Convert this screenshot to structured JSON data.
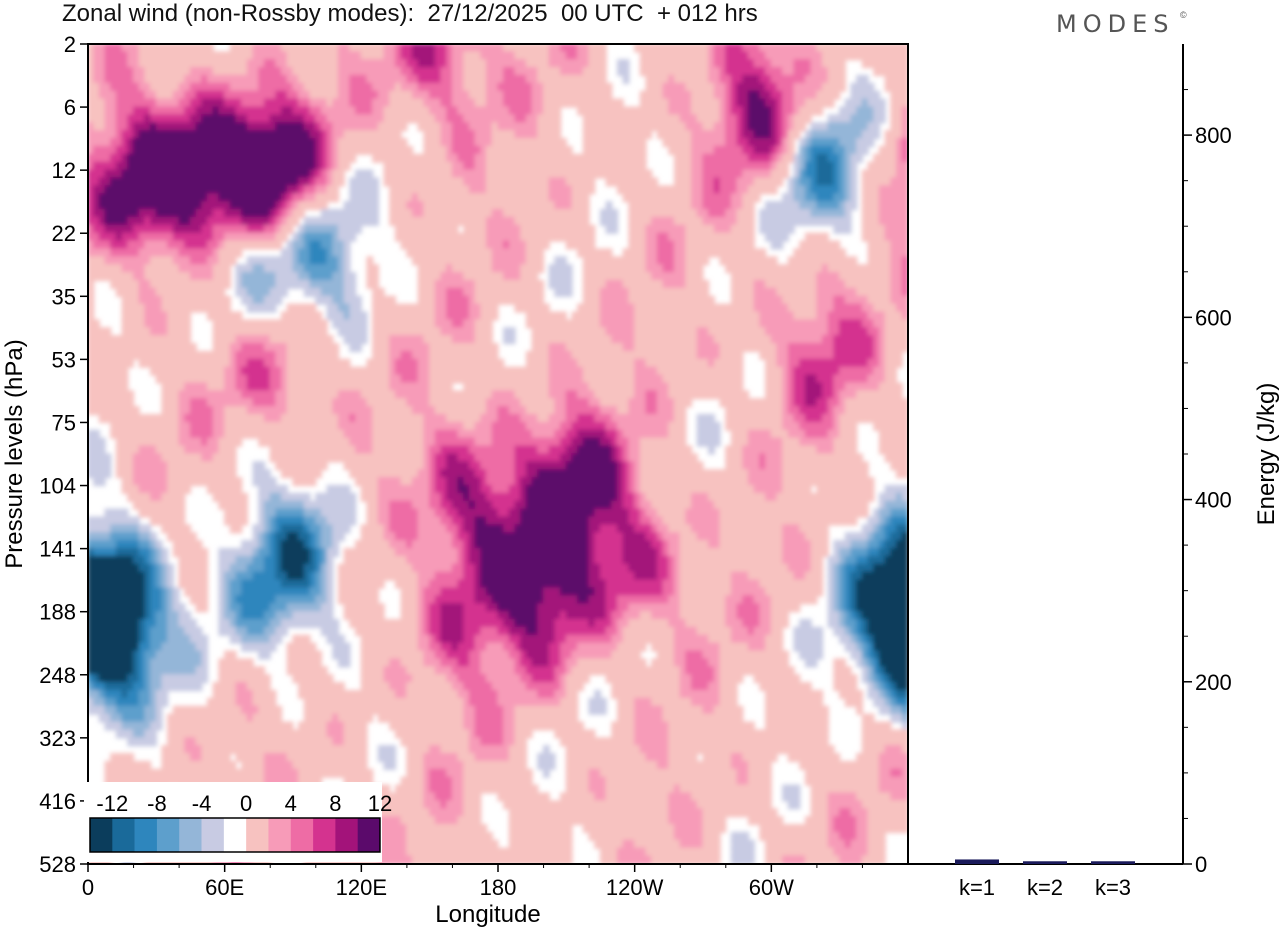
{
  "header": {
    "title": "Zonal wind (non-Rossby modes):  27/12/2025  00 UTC  + 012 hrs",
    "brand": "MODES",
    "brand_mark": "©"
  },
  "chart_data": [
    {
      "type": "heatmap",
      "title": "Zonal wind (non-Rossby modes):  27/12/2025  00 UTC  + 012 hrs",
      "xlabel": "Longitude",
      "ylabel": "Pressure levels (hPa)",
      "x_ticks": [
        "0",
        "60E",
        "120E",
        "180",
        "120W",
        "60W"
      ],
      "x_tick_degrees": [
        0,
        60,
        120,
        180,
        240,
        300
      ],
      "xlim": [
        0,
        360
      ],
      "y_ticks": [
        "2",
        "6",
        "12",
        "22",
        "35",
        "53",
        "75",
        "104",
        "141",
        "188",
        "248",
        "323",
        "416",
        "528"
      ],
      "colorbar": {
        "labels": [
          "-12",
          "-8",
          "-4",
          "0",
          "4",
          "8",
          "12"
        ],
        "levels": [
          -14,
          -12,
          -10,
          -8,
          -6,
          -4,
          -2,
          2,
          4,
          6,
          8,
          10,
          12,
          14
        ],
        "colors": [
          "#0b3d5c",
          "#1a6a9a",
          "#2e86bd",
          "#5d9fcc",
          "#94b6d8",
          "#c8cbe3",
          "#ffffff",
          "#f7c2c0",
          "#f79bb8",
          "#ee6ca5",
          "#d4338f",
          "#a3137a",
          "#5b0a6b"
        ]
      },
      "features": [
        {
          "lon": 10,
          "level": 9.4,
          "value": -12
        },
        {
          "lon": 15,
          "level": 8.6,
          "value": -8
        },
        {
          "lon": 95,
          "level": 8.1,
          "value": -10
        },
        {
          "lon": 80,
          "level": 8.9,
          "value": -6
        },
        {
          "lon": 360,
          "level": 9.3,
          "value": -10
        },
        {
          "lon": 348,
          "level": 8.5,
          "value": -6
        },
        {
          "lon": 170,
          "level": 7.3,
          "value": 10
        },
        {
          "lon": 160,
          "level": 9.2,
          "value": 6
        },
        {
          "lon": 200,
          "level": 8.7,
          "value": 10
        },
        {
          "lon": 212,
          "level": 6.9,
          "value": 10
        },
        {
          "lon": 240,
          "level": 8.2,
          "value": 8
        },
        {
          "lon": 65,
          "level": 2.0,
          "value": 10
        },
        {
          "lon": 85,
          "level": 2.1,
          "value": 12
        },
        {
          "lon": 40,
          "level": 2.2,
          "value": 10
        },
        {
          "lon": 20,
          "level": 2.3,
          "value": 8
        },
        {
          "lon": 100,
          "level": 3.2,
          "value": -10
        },
        {
          "lon": 70,
          "level": 3.5,
          "value": -8
        },
        {
          "lon": 322,
          "level": 2.0,
          "value": -10
        },
        {
          "lon": 298,
          "level": 1.1,
          "value": 10
        },
        {
          "lon": 85,
          "level": 5.2,
          "value": 6
        },
        {
          "lon": 320,
          "level": 4.8,
          "value": 6
        },
        {
          "lon": 155,
          "level": 0.2,
          "value": 8
        }
      ]
    },
    {
      "type": "bar",
      "ylabel": "Energy (J/kg)",
      "categories": [
        "k=1",
        "k=2",
        "k=3"
      ],
      "values": [
        5,
        3,
        3
      ],
      "ylim": [
        0,
        900
      ],
      "y_ticks": [
        "0",
        "200",
        "400",
        "600",
        "800"
      ],
      "y_tick_values": [
        0,
        200,
        400,
        600,
        800
      ],
      "bar_color": "#1a1a5a"
    }
  ]
}
